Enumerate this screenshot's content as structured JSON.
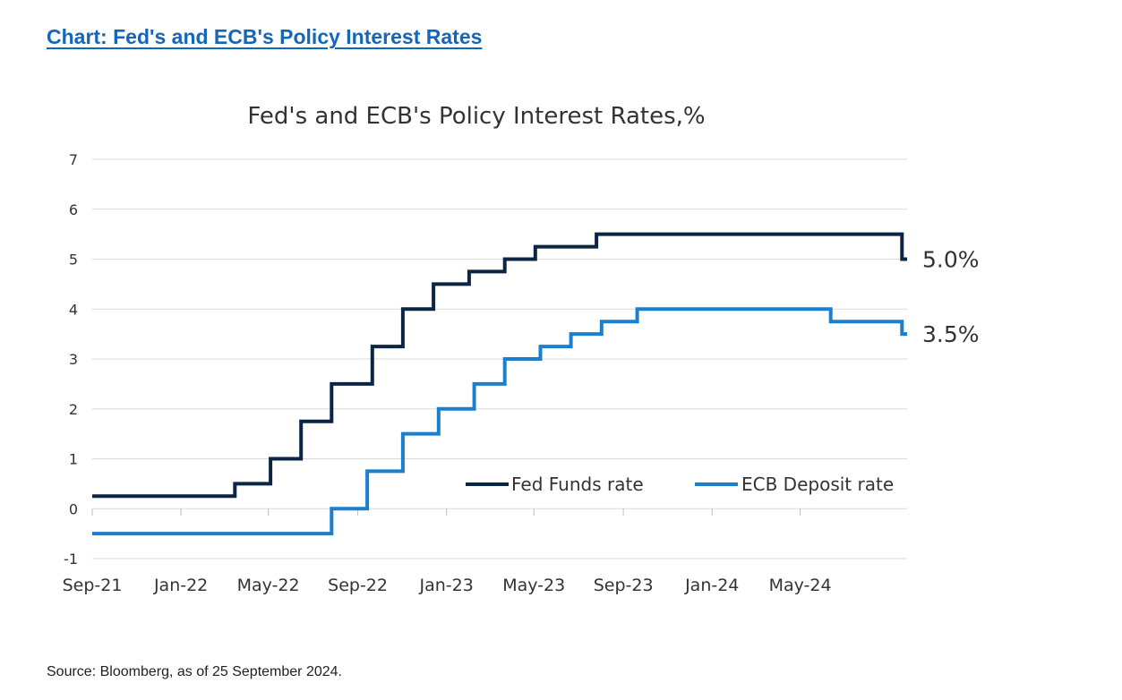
{
  "heading": "Chart: Fed's and ECB's Policy Interest Rates",
  "source": "Source: Bloomberg, as of 25 September 2024.",
  "colors": {
    "heading": "#1566b8",
    "fed": "#0b2545",
    "ecb": "#1b7fd0",
    "grid": "#d9d9d9"
  },
  "chart_data": {
    "type": "line",
    "title": "Fed's and ECB's Policy Interest Rates,%",
    "xlabel": "",
    "ylabel": "",
    "ylim": [
      -1,
      7
    ],
    "yticks": [
      -1,
      0,
      1,
      2,
      3,
      4,
      5,
      6,
      7
    ],
    "xlim": [
      "2021-09",
      "2024-09"
    ],
    "xticks": [
      "Sep-21",
      "Jan-22",
      "May-22",
      "Sep-22",
      "Jan-23",
      "May-23",
      "Sep-23",
      "Jan-24",
      "May-24"
    ],
    "grid": true,
    "legend_position": "bottom-right",
    "step": true,
    "series": [
      {
        "name": "Fed Funds rate",
        "end_label": "5.0%",
        "points": [
          [
            "2021-09-01",
            0.25
          ],
          [
            "2022-03-16",
            0.5
          ],
          [
            "2022-05-04",
            1.0
          ],
          [
            "2022-06-15",
            1.75
          ],
          [
            "2022-07-27",
            2.5
          ],
          [
            "2022-09-21",
            3.25
          ],
          [
            "2022-11-02",
            4.0
          ],
          [
            "2022-12-14",
            4.5
          ],
          [
            "2023-02-01",
            4.75
          ],
          [
            "2023-03-22",
            5.0
          ],
          [
            "2023-05-03",
            5.25
          ],
          [
            "2023-07-26",
            5.5
          ],
          [
            "2024-09-18",
            5.0
          ],
          [
            "2024-09-25",
            5.0
          ]
        ]
      },
      {
        "name": "ECB Deposit rate",
        "end_label": "3.5%",
        "points": [
          [
            "2021-09-01",
            -0.5
          ],
          [
            "2022-07-27",
            0.0
          ],
          [
            "2022-09-14",
            0.75
          ],
          [
            "2022-11-02",
            1.5
          ],
          [
            "2022-12-21",
            2.0
          ],
          [
            "2023-02-08",
            2.5
          ],
          [
            "2023-03-22",
            3.0
          ],
          [
            "2023-05-10",
            3.25
          ],
          [
            "2023-06-21",
            3.5
          ],
          [
            "2023-08-02",
            3.75
          ],
          [
            "2023-09-20",
            4.0
          ],
          [
            "2024-06-12",
            3.75
          ],
          [
            "2024-09-18",
            3.5
          ],
          [
            "2024-09-25",
            3.5
          ]
        ]
      }
    ]
  }
}
